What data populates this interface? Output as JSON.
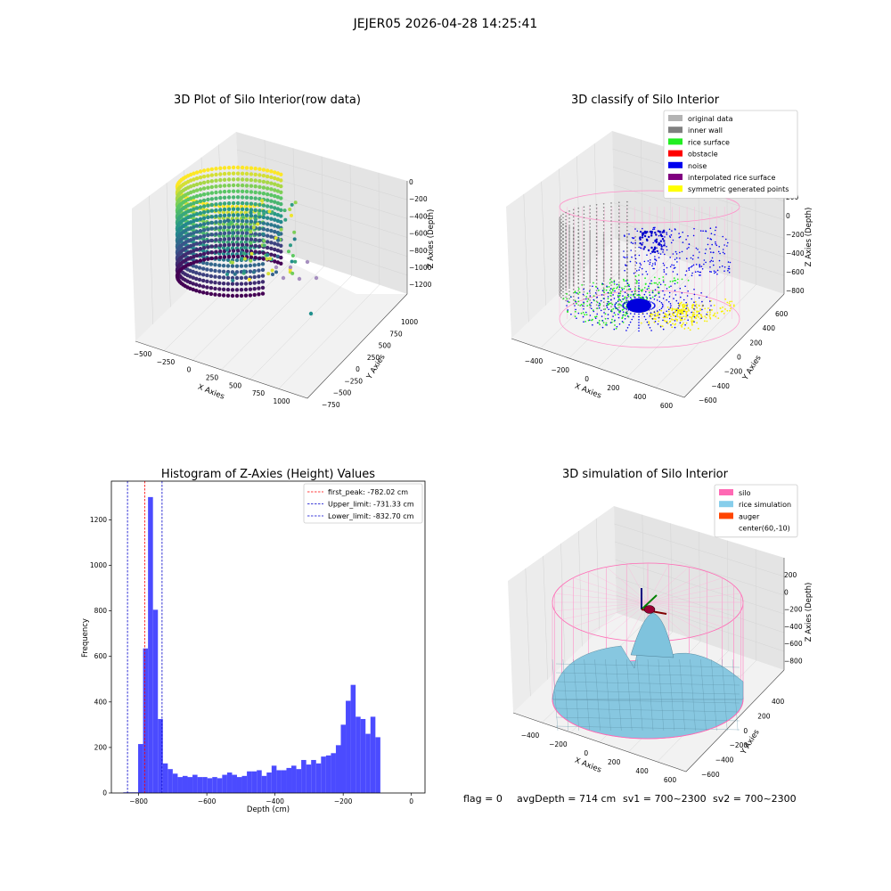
{
  "suptitle": "JEJER05 2026-04-28 14:25:41",
  "panel1": {
    "title": "3D Plot of Silo Interior(row data)",
    "xlabel": "X Axies",
    "ylabel": "Y Axies",
    "zlabel": "Z Axies (Depth)",
    "xticks": [
      "−500",
      "−250",
      "0",
      "250",
      "500",
      "750",
      "1000"
    ],
    "yticks": [
      "−750",
      "−500",
      "−250",
      "0",
      "250",
      "500",
      "750",
      "1000"
    ],
    "zticks": [
      "0",
      "−200",
      "−400",
      "−600",
      "−800",
      "−1000",
      "−1200"
    ]
  },
  "panel2": {
    "title": "3D classify of Silo Interior",
    "xlabel": "X Axies",
    "ylabel": "Y Axies",
    "zlabel": "Z Axies (Depth)",
    "xticks": [
      "−400",
      "−200",
      "0",
      "200",
      "400",
      "600"
    ],
    "yticks": [
      "−600",
      "−400",
      "−200",
      "0",
      "200",
      "400",
      "600"
    ],
    "zticks": [
      "200",
      "0",
      "−200",
      "−400",
      "−600",
      "−800"
    ],
    "legend": [
      {
        "label": "original data",
        "color": "#b3b3b3"
      },
      {
        "label": "inner wall",
        "color": "#808080"
      },
      {
        "label": "rice surface",
        "color": "#22ee22"
      },
      {
        "label": "obstacle",
        "color": "#ff0000"
      },
      {
        "label": "noise",
        "color": "#0000ee"
      },
      {
        "label": "interpolated rice surface",
        "color": "#800080"
      },
      {
        "label": "symmetric generated points",
        "color": "#ffff00"
      }
    ]
  },
  "panel4": {
    "title": "3D simulation of Silo Interior",
    "xlabel": "X Axies",
    "ylabel": "Y Axies",
    "zlabel": "Z Axies (Depth)",
    "xticks": [
      "−400",
      "−200",
      "0",
      "200",
      "400",
      "600"
    ],
    "yticks": [
      "−600",
      "−400",
      "−200",
      "0",
      "200",
      "400"
    ],
    "zticks": [
      "200",
      "0",
      "−200",
      "−400",
      "−600",
      "−800"
    ],
    "legend": [
      {
        "label": "silo",
        "color": "#ff69b4"
      },
      {
        "label": "rice simulation",
        "color": "#87ceeb"
      },
      {
        "label": "auger",
        "color": "#ff4500"
      },
      {
        "label": "center(60,-10)",
        "color": "#ffffff"
      }
    ]
  },
  "footer": {
    "flag": "flag = 0",
    "avg": "avgDepth = 714 cm",
    "sv1": "sv1 = 700~2300",
    "sv2": "sv2 = 700~2300"
  },
  "chart_data": [
    {
      "type": "bar",
      "title": "Histogram of Z-Axies (Height) Values",
      "xlabel": "Depth (cm)",
      "ylabel": "Frequency",
      "xlim": [
        -880,
        40
      ],
      "ylim": [
        0,
        1370
      ],
      "xticks": [
        -800,
        -600,
        -400,
        -200,
        0
      ],
      "xtick_labels": [
        "−800",
        "−600",
        "−400",
        "−200",
        "0"
      ],
      "yticks": [
        0,
        200,
        400,
        600,
        800,
        1000,
        1200
      ],
      "bin_start": -845,
      "bin_width": 14.5,
      "bar_color": "#4b4bff",
      "values": [
        3,
        3,
        3,
        215,
        635,
        1300,
        805,
        325,
        130,
        105,
        85,
        70,
        75,
        70,
        80,
        70,
        70,
        65,
        70,
        65,
        80,
        90,
        80,
        70,
        75,
        95,
        95,
        100,
        75,
        90,
        120,
        100,
        100,
        110,
        120,
        105,
        145,
        125,
        145,
        130,
        160,
        165,
        175,
        210,
        300,
        405,
        475,
        335,
        325,
        260,
        335,
        245
      ],
      "vlines": [
        {
          "x": -782.02,
          "color": "#ff0000",
          "label": "first_peak: -782.02 cm"
        },
        {
          "x": -731.33,
          "color": "#0000cc",
          "label": "Upper_limit: -731.33 cm"
        },
        {
          "x": -832.7,
          "color": "#0000cc",
          "label": "Lower_limit: -832.70 cm"
        }
      ],
      "legend_position": "upper right"
    }
  ]
}
